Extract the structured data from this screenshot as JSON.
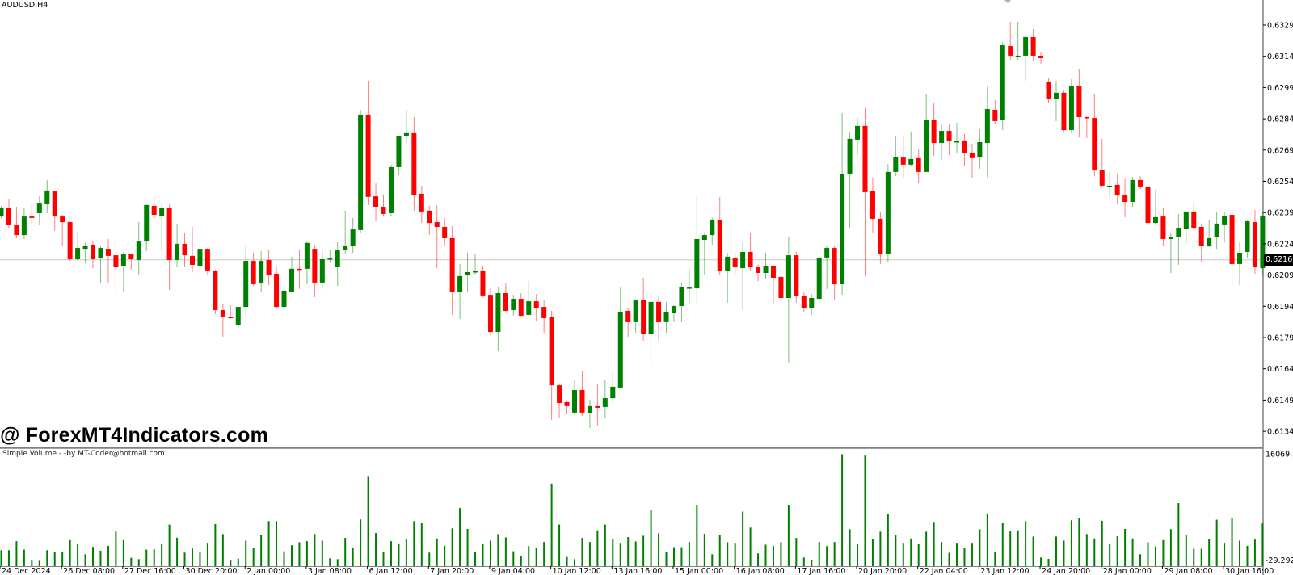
{
  "chart_title": "AUDUSD,H4",
  "watermark": "@ ForexMT4Indicators.com",
  "indicator_label": "Simple Volume - -by MT-Coder@hotmail.com",
  "colors": {
    "bull": "#008000",
    "bear": "#ff0000",
    "volume": "#008000",
    "bid_line": "#c8c8c8",
    "axis": "#808080"
  },
  "icons": {
    "top_marker": "diamond-marker-icon"
  },
  "chart_data": [
    {
      "type": "candlestick",
      "symbol": "AUDUSD",
      "timeframe": "H4",
      "ylim": [
        0.6129,
        0.6334
      ],
      "y_ticks": [
        "0.63290",
        "0.63140",
        "0.62990",
        "0.62840",
        "0.62690",
        "0.62540",
        "0.62390",
        "0.62240",
        "0.62090",
        "0.61940",
        "0.61790",
        "0.61640",
        "0.61490",
        "0.61340"
      ],
      "bid": "0.62163",
      "x_tick_labels": [
        "24 Dec 2024",
        "26 Dec 08:00",
        "27 Dec 16:00",
        "30 Dec 20:00",
        "2 Jan 00:00",
        "3 Jan 08:00",
        "6 Jan 12:00",
        "7 Jan 20:00",
        "9 Jan 04:00",
        "10 Jan 12:00",
        "13 Jan 16:00",
        "15 Jan 00:00",
        "16 Jan 08:00",
        "17 Jan 16:00",
        "20 Jan 20:00",
        "22 Jan 04:00",
        "23 Jan 12:00",
        "24 Jan 20:00",
        "28 Jan 00:00",
        "29 Jan 08:00",
        "30 Jan 16:00"
      ],
      "ohlc": [
        [
          0.62375,
          0.62422,
          0.62364,
          0.6241
        ],
        [
          0.6241,
          0.62453,
          0.62317,
          0.62329
        ],
        [
          0.62329,
          0.62418,
          0.62267,
          0.62282
        ],
        [
          0.62282,
          0.6241,
          0.62263,
          0.62371
        ],
        [
          0.62371,
          0.62437,
          0.62325,
          0.62364
        ],
        [
          0.62387,
          0.62468,
          0.62333,
          0.62437
        ],
        [
          0.62433,
          0.62546,
          0.62387,
          0.62496
        ],
        [
          0.62492,
          0.62496,
          0.62302,
          0.62371
        ],
        [
          0.62371,
          0.62379,
          0.62228,
          0.62344
        ],
        [
          0.62344,
          0.62348,
          0.62158,
          0.62166
        ],
        [
          0.62166,
          0.62298,
          0.62158,
          0.6222
        ],
        [
          0.62216,
          0.62244,
          0.62147,
          0.62232
        ],
        [
          0.62236,
          0.62251,
          0.62123,
          0.62166
        ],
        [
          0.6217,
          0.62228,
          0.62054,
          0.6222
        ],
        [
          0.62216,
          0.62263,
          0.62054,
          0.62182
        ],
        [
          0.62185,
          0.62259,
          0.62011,
          0.62131
        ],
        [
          0.62135,
          0.62201,
          0.62007,
          0.62189
        ],
        [
          0.62189,
          0.62189,
          0.62116,
          0.62166
        ],
        [
          0.62162,
          0.62344,
          0.62089,
          0.62251
        ],
        [
          0.62251,
          0.62433,
          0.62205,
          0.62426
        ],
        [
          0.62422,
          0.62468,
          0.62352,
          0.62379
        ],
        [
          0.62375,
          0.6243,
          0.62209,
          0.62414
        ],
        [
          0.6241,
          0.6243,
          0.62019,
          0.62162
        ],
        [
          0.62162,
          0.62337,
          0.62127,
          0.6224
        ],
        [
          0.6224,
          0.62294,
          0.62131,
          0.62185
        ],
        [
          0.62182,
          0.62321,
          0.62104,
          0.62139
        ],
        [
          0.62135,
          0.62251,
          0.62077,
          0.62216
        ],
        [
          0.62216,
          0.6222,
          0.62089,
          0.62112
        ],
        [
          0.62112,
          0.62116,
          0.61902,
          0.61922
        ],
        [
          0.61922,
          0.61949,
          0.61794,
          0.61891
        ],
        [
          0.61891,
          0.61945,
          0.61879,
          0.61883
        ],
        [
          0.61852,
          0.61941,
          0.61833,
          0.61937
        ],
        [
          0.61937,
          0.62228,
          0.61887,
          0.62158
        ],
        [
          0.62158,
          0.62197,
          0.62038,
          0.62046
        ],
        [
          0.6205,
          0.62205,
          0.62011,
          0.62158
        ],
        [
          0.62162,
          0.62213,
          0.62042,
          0.62092
        ],
        [
          0.62096,
          0.62135,
          0.61926,
          0.61937
        ],
        [
          0.61937,
          0.62069,
          0.6193,
          0.62015
        ],
        [
          0.62011,
          0.62178,
          0.62007,
          0.6212
        ],
        [
          0.6212,
          0.62213,
          0.62023,
          0.62116
        ],
        [
          0.6212,
          0.62255,
          0.62046,
          0.62244
        ],
        [
          0.62216,
          0.62236,
          0.61984,
          0.62054
        ],
        [
          0.62054,
          0.62213,
          0.62023,
          0.62166
        ],
        [
          0.62166,
          0.62213,
          0.62147,
          0.6217
        ],
        [
          0.62131,
          0.62247,
          0.62038,
          0.62209
        ],
        [
          0.62209,
          0.62399,
          0.62189,
          0.62232
        ],
        [
          0.62228,
          0.62364,
          0.62197,
          0.62309
        ],
        [
          0.62306,
          0.62883,
          0.6229,
          0.6286
        ],
        [
          0.6286,
          0.63023,
          0.62426,
          0.62465
        ],
        [
          0.62468,
          0.6253,
          0.62348,
          0.62418
        ],
        [
          0.62418,
          0.62476,
          0.62375,
          0.62383
        ],
        [
          0.62387,
          0.6262,
          0.62375,
          0.62608
        ],
        [
          0.62608,
          0.62755,
          0.62569,
          0.62755
        ],
        [
          0.62755,
          0.62883,
          0.62724,
          0.62771
        ],
        [
          0.62771,
          0.62848,
          0.62399,
          0.62476
        ],
        [
          0.6248,
          0.62519,
          0.6234,
          0.62395
        ],
        [
          0.62399,
          0.62422,
          0.62282,
          0.6234
        ],
        [
          0.62344,
          0.62426,
          0.62123,
          0.62321
        ],
        [
          0.62321,
          0.62364,
          0.62228,
          0.62267
        ],
        [
          0.62267,
          0.62325,
          0.61899,
          0.62007
        ],
        [
          0.62007,
          0.62143,
          0.61879,
          0.62085
        ],
        [
          0.62089,
          0.62197,
          0.62007,
          0.62104
        ],
        [
          0.62108,
          0.62189,
          0.62092,
          0.62108
        ],
        [
          0.62112,
          0.62135,
          0.61984,
          0.61992
        ],
        [
          0.61995,
          0.62026,
          0.61802,
          0.61817
        ],
        [
          0.61817,
          0.62034,
          0.61724,
          0.62003
        ],
        [
          0.62003,
          0.6205,
          0.61914,
          0.61918
        ],
        [
          0.61922,
          0.61995,
          0.61895,
          0.61976
        ],
        [
          0.61976,
          0.62003,
          0.61891,
          0.61895
        ],
        [
          0.61899,
          0.62061,
          0.61887,
          0.61964
        ],
        [
          0.61964,
          0.61999,
          0.61868,
          0.61933
        ],
        [
          0.61937,
          0.61968,
          0.61813,
          0.61883
        ],
        [
          0.61887,
          0.61918,
          0.61395,
          0.61561
        ],
        [
          0.61561,
          0.61565,
          0.61406,
          0.61476
        ],
        [
          0.6148,
          0.61488,
          0.61422,
          0.61461
        ],
        [
          0.6143,
          0.61589,
          0.61418,
          0.61538
        ],
        [
          0.61538,
          0.61631,
          0.61414,
          0.6143
        ],
        [
          0.61426,
          0.61492,
          0.61356,
          0.61461
        ],
        [
          0.61461,
          0.61569,
          0.61368,
          0.61453
        ],
        [
          0.61457,
          0.61585,
          0.61402,
          0.61499
        ],
        [
          0.61499,
          0.61627,
          0.61472,
          0.61554
        ],
        [
          0.6155,
          0.6203,
          0.61546,
          0.61914
        ],
        [
          0.61918,
          0.6193,
          0.61794,
          0.61864
        ],
        [
          0.61864,
          0.61976,
          0.61813,
          0.61968
        ],
        [
          0.61972,
          0.62077,
          0.61775,
          0.61809
        ],
        [
          0.61806,
          0.61976,
          0.61662,
          0.61961
        ],
        [
          0.61961,
          0.61988,
          0.61775,
          0.61864
        ],
        [
          0.61864,
          0.61961,
          0.61813,
          0.61914
        ],
        [
          0.6191,
          0.61945,
          0.61864,
          0.61941
        ],
        [
          0.61941,
          0.62054,
          0.61864,
          0.62034
        ],
        [
          0.6203,
          0.6212,
          0.61953,
          0.6203
        ],
        [
          0.62026,
          0.62468,
          0.61945,
          0.62263
        ],
        [
          0.62259,
          0.62294,
          0.62092,
          0.62282
        ],
        [
          0.62282,
          0.62364,
          0.62236,
          0.62356
        ],
        [
          0.62356,
          0.62465,
          0.62089,
          0.62108
        ],
        [
          0.62108,
          0.62197,
          0.61957,
          0.62178
        ],
        [
          0.62174,
          0.62201,
          0.62092,
          0.62127
        ],
        [
          0.62123,
          0.62247,
          0.61922,
          0.62201
        ],
        [
          0.62201,
          0.62294,
          0.62108,
          0.62127
        ],
        [
          0.62127,
          0.62139,
          0.62061,
          0.621
        ],
        [
          0.621,
          0.62197,
          0.62069,
          0.62135
        ],
        [
          0.62135,
          0.62139,
          0.61953,
          0.62077
        ],
        [
          0.62081,
          0.62143,
          0.61957,
          0.6198
        ],
        [
          0.6198,
          0.62275,
          0.61666,
          0.62185
        ],
        [
          0.62185,
          0.62201,
          0.61957,
          0.61988
        ],
        [
          0.61988,
          0.62007,
          0.61914,
          0.6193
        ],
        [
          0.6193,
          0.61999,
          0.61899,
          0.6198
        ],
        [
          0.61976,
          0.62178,
          0.61968,
          0.62174
        ],
        [
          0.62174,
          0.62228,
          0.62023,
          0.6222
        ],
        [
          0.6222,
          0.62228,
          0.61968,
          0.62046
        ],
        [
          0.62046,
          0.62868,
          0.61995,
          0.62577
        ],
        [
          0.62577,
          0.62778,
          0.62317,
          0.62744
        ],
        [
          0.6274,
          0.62844,
          0.6267,
          0.62806
        ],
        [
          0.62806,
          0.62891,
          0.62085,
          0.62488
        ],
        [
          0.62492,
          0.62558,
          0.62294,
          0.6236
        ],
        [
          0.6236,
          0.62395,
          0.62143,
          0.62193
        ],
        [
          0.62193,
          0.62623,
          0.62154,
          0.62585
        ],
        [
          0.62585,
          0.62755,
          0.62565,
          0.62658
        ],
        [
          0.62654,
          0.62759,
          0.62558,
          0.6262
        ],
        [
          0.6262,
          0.62775,
          0.62612,
          0.62647
        ],
        [
          0.62651,
          0.62693,
          0.6253,
          0.62585
        ],
        [
          0.62585,
          0.62957,
          0.62585,
          0.62833
        ],
        [
          0.62833,
          0.62914,
          0.62662,
          0.62724
        ],
        [
          0.62724,
          0.62817,
          0.62643,
          0.62782
        ],
        [
          0.62782,
          0.62813,
          0.62666,
          0.62732
        ],
        [
          0.62732,
          0.62821,
          0.62678,
          0.62732
        ],
        [
          0.62736,
          0.62767,
          0.62612,
          0.62674
        ],
        [
          0.62674,
          0.6272,
          0.62554,
          0.62651
        ],
        [
          0.62654,
          0.6279,
          0.626,
          0.62728
        ],
        [
          0.62724,
          0.62999,
          0.62554,
          0.62887
        ],
        [
          0.62883,
          0.6293,
          0.62817,
          0.62829
        ],
        [
          0.62833,
          0.63209,
          0.62786,
          0.63193
        ],
        [
          0.63189,
          0.63306,
          0.63123,
          0.63143
        ],
        [
          0.63143,
          0.63306,
          0.63123,
          0.63143
        ],
        [
          0.63143,
          0.63244,
          0.63023,
          0.63232
        ],
        [
          0.63232,
          0.63271,
          0.63116,
          0.63143
        ],
        [
          0.63143,
          0.63162,
          0.63104,
          0.63131
        ],
        [
          0.63019,
          0.63038,
          0.62914,
          0.62934
        ],
        [
          0.62934,
          0.63023,
          0.62829,
          0.62965
        ],
        [
          0.62965,
          0.62976,
          0.62778,
          0.62786
        ],
        [
          0.62786,
          0.6303,
          0.62771,
          0.62996
        ],
        [
          0.62996,
          0.63081,
          0.62751,
          0.62848
        ],
        [
          0.62848,
          0.62852,
          0.62747,
          0.62844
        ],
        [
          0.62844,
          0.62961,
          0.62565,
          0.62592
        ],
        [
          0.62596,
          0.62744,
          0.62515,
          0.62519
        ],
        [
          0.62519,
          0.62585,
          0.62461,
          0.62519
        ],
        [
          0.62523,
          0.62577,
          0.6243,
          0.62472
        ],
        [
          0.62472,
          0.6255,
          0.62368,
          0.62441
        ],
        [
          0.62441,
          0.62561,
          0.62418,
          0.62546
        ],
        [
          0.62546,
          0.62565,
          0.62503,
          0.62515
        ],
        [
          0.62515,
          0.62561,
          0.62271,
          0.6234
        ],
        [
          0.6234,
          0.62499,
          0.62333,
          0.62368
        ],
        [
          0.62371,
          0.6241,
          0.62232,
          0.62263
        ],
        [
          0.62263,
          0.6229,
          0.621,
          0.62271
        ],
        [
          0.62271,
          0.62383,
          0.62139,
          0.62317
        ],
        [
          0.62313,
          0.62395,
          0.6224,
          0.62395
        ],
        [
          0.62395,
          0.62437,
          0.62306,
          0.62317
        ],
        [
          0.62321,
          0.62337,
          0.62151,
          0.62228
        ],
        [
          0.62228,
          0.62352,
          0.62224,
          0.62267
        ],
        [
          0.62271,
          0.62395,
          0.62216,
          0.62337
        ],
        [
          0.62333,
          0.62395,
          0.62247,
          0.62375
        ],
        [
          0.62379,
          0.62402,
          0.62015,
          0.62143
        ],
        [
          0.62143,
          0.62247,
          0.62042,
          0.62197
        ],
        [
          0.62201,
          0.62356,
          0.62174,
          0.62348
        ],
        [
          0.62344,
          0.62402,
          0.62096,
          0.62127
        ],
        [
          0.62123,
          0.62395,
          0.62092,
          0.62375
        ]
      ]
    },
    {
      "type": "bar",
      "name": "Simple Volume",
      "ylim": [
        -29.292,
        16069.14
      ],
      "y_ticks": [
        "16069.14",
        "-29.292"
      ],
      "values": [
        2268,
        2268,
        3558,
        2346,
        821,
        743,
        2268,
        1994,
        1994,
        3715,
        3167,
        1681,
        2737,
        2190,
        2893,
        4927,
        3715,
        1173,
        978,
        2346,
        2385,
        3245,
        5943,
        4066,
        1916,
        2502,
        1916,
        3324,
        6021,
        4575,
        860,
        1056,
        3636,
        2542,
        4418,
        6452,
        6452,
        2111,
        2972,
        3402,
        3558,
        4575,
        3636,
        1095,
        978,
        4027,
        2659,
        6686,
        12825,
        4731,
        1994,
        3558,
        3245,
        3871,
        6452,
        6139,
        1916,
        3949,
        2893,
        5396,
        8328,
        5318,
        1994,
        3167,
        3636,
        4575,
        4106,
        2111,
        1369,
        2854,
        2620,
        3441,
        11847,
        5943,
        1290,
        978,
        4027,
        3441,
        5122,
        5943,
        3871,
        3324,
        4145,
        3519,
        4340,
        8094,
        4692,
        1994,
        2698,
        2698,
        3441,
        8798,
        4614,
        1681,
        4497,
        3402,
        3324,
        7820,
        5513,
        1799,
        3050,
        2854,
        3402,
        8798,
        4027,
        1212,
        899,
        3441,
        2854,
        3441,
        16069,
        5279,
        3128,
        15875,
        3910,
        4927,
        7507,
        4497,
        3324,
        3949,
        3128,
        4927,
        6334,
        3441,
        1877,
        3324,
        2542,
        3324,
        5279,
        7507,
        2072,
        6178,
        4966,
        5122,
        6452,
        4223,
        1212,
        1017,
        4223,
        3636,
        6569,
        6921,
        4575,
        3949,
        6491,
        3167,
        4262,
        5318,
        3949,
        1681,
        3402,
        2815,
        3715,
        5279,
        9032,
        4497,
        2463,
        2463,
        3871,
        6647,
        3324,
        6960,
        3636,
        2893,
        3793,
        6100
      ]
    }
  ]
}
